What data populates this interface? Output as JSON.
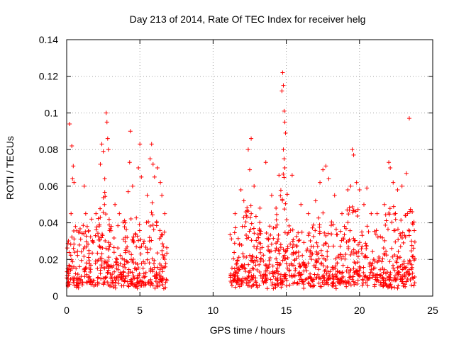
{
  "chart_data": {
    "type": "scatter",
    "title": "Day 213 of 2014, Rate Of TEC Index for receiver helg",
    "xlabel": "GPS time / hours",
    "ylabel": "ROTI / TECUs",
    "xlim": [
      0,
      25
    ],
    "ylim": [
      0,
      0.14
    ],
    "xticks": [
      0,
      5,
      10,
      15,
      20,
      25
    ],
    "xtick_labels": [
      "0",
      "5",
      "10",
      "15",
      "20",
      "25"
    ],
    "yticks": [
      0,
      0.02,
      0.04,
      0.06,
      0.08,
      0.1,
      0.12,
      0.14
    ],
    "ytick_labels": [
      "0",
      "0.02",
      "0.04",
      "0.06",
      "0.08",
      "0.1",
      "0.12",
      "0.14"
    ],
    "grid": true,
    "marker": "+",
    "color": "#ff0000",
    "data_segments": [
      {
        "x_start": 0.0,
        "x_end": 6.85
      },
      {
        "x_start": 11.15,
        "x_end": 23.8
      }
    ],
    "series": [
      {
        "name": "ROTI",
        "points": [
          [
            0.2,
            0.094
          ],
          [
            0.35,
            0.082
          ],
          [
            0.4,
            0.064
          ],
          [
            0.45,
            0.071
          ],
          [
            0.5,
            0.062
          ],
          [
            0.3,
            0.045
          ],
          [
            0.6,
            0.038
          ],
          [
            0.9,
            0.035
          ],
          [
            1.2,
            0.06
          ],
          [
            1.3,
            0.045
          ],
          [
            1.4,
            0.038
          ],
          [
            1.7,
            0.042
          ],
          [
            2.0,
            0.045
          ],
          [
            2.3,
            0.072
          ],
          [
            2.4,
            0.083
          ],
          [
            2.5,
            0.079
          ],
          [
            2.6,
            0.064
          ],
          [
            2.7,
            0.1
          ],
          [
            2.75,
            0.095
          ],
          [
            2.8,
            0.086
          ],
          [
            2.85,
            0.08
          ],
          [
            3.3,
            0.05
          ],
          [
            3.6,
            0.045
          ],
          [
            4.0,
            0.04
          ],
          [
            4.2,
            0.057
          ],
          [
            4.3,
            0.073
          ],
          [
            4.35,
            0.09
          ],
          [
            4.5,
            0.06
          ],
          [
            4.9,
            0.07
          ],
          [
            5.0,
            0.083
          ],
          [
            5.1,
            0.065
          ],
          [
            5.5,
            0.055
          ],
          [
            5.7,
            0.075
          ],
          [
            5.8,
            0.083
          ],
          [
            5.9,
            0.072
          ],
          [
            6.0,
            0.065
          ],
          [
            6.2,
            0.07
          ],
          [
            6.4,
            0.062
          ],
          [
            6.5,
            0.055
          ],
          [
            6.7,
            0.045
          ],
          [
            11.5,
            0.045
          ],
          [
            11.9,
            0.058
          ],
          [
            12.1,
            0.052
          ],
          [
            12.4,
            0.08
          ],
          [
            12.5,
            0.069
          ],
          [
            12.6,
            0.086
          ],
          [
            12.8,
            0.06
          ],
          [
            13.2,
            0.048
          ],
          [
            13.6,
            0.073
          ],
          [
            14.0,
            0.055
          ],
          [
            14.3,
            0.048
          ],
          [
            14.5,
            0.066
          ],
          [
            14.7,
            0.112
          ],
          [
            14.75,
            0.122
          ],
          [
            14.8,
            0.115
          ],
          [
            14.85,
            0.101
          ],
          [
            14.9,
            0.095
          ],
          [
            14.95,
            0.089
          ],
          [
            14.8,
            0.08
          ],
          [
            14.85,
            0.075
          ],
          [
            14.9,
            0.07
          ],
          [
            15.4,
            0.066
          ],
          [
            16.0,
            0.05
          ],
          [
            16.5,
            0.045
          ],
          [
            17.0,
            0.052
          ],
          [
            17.3,
            0.062
          ],
          [
            17.5,
            0.069
          ],
          [
            17.7,
            0.071
          ],
          [
            17.9,
            0.064
          ],
          [
            18.3,
            0.055
          ],
          [
            18.8,
            0.045
          ],
          [
            19.2,
            0.058
          ],
          [
            19.4,
            0.06
          ],
          [
            19.5,
            0.08
          ],
          [
            19.6,
            0.077
          ],
          [
            19.8,
            0.062
          ],
          [
            20.0,
            0.058
          ],
          [
            20.3,
            0.05
          ],
          [
            20.5,
            0.059
          ],
          [
            20.8,
            0.045
          ],
          [
            21.2,
            0.045
          ],
          [
            21.7,
            0.05
          ],
          [
            22.0,
            0.073
          ],
          [
            22.1,
            0.07
          ],
          [
            22.3,
            0.062
          ],
          [
            22.6,
            0.058
          ],
          [
            22.9,
            0.06
          ],
          [
            23.2,
            0.067
          ],
          [
            23.4,
            0.097
          ],
          [
            23.6,
            0.046
          ]
        ]
      }
    ]
  }
}
